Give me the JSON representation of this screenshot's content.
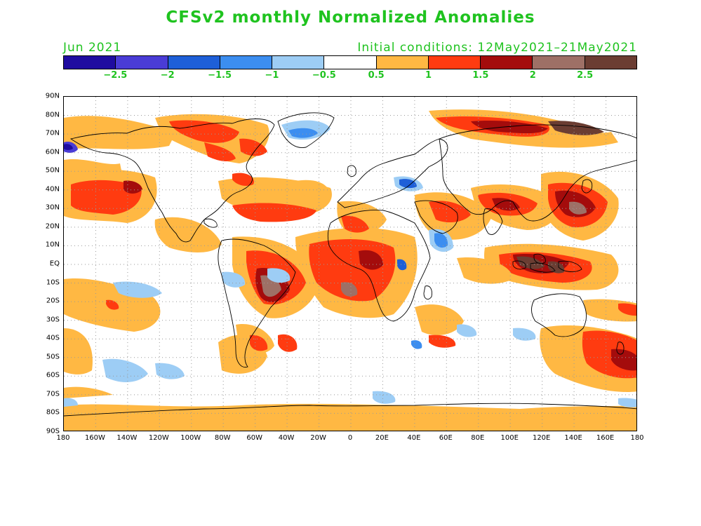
{
  "title": "CFSv2 monthly Normalized Anomalies",
  "forecast_month": "Jun 2021",
  "initial_conditions": "Initial conditions: 12May2021–21May2021",
  "colorbar": {
    "colors": [
      "#1f0ca0",
      "#4a3cd6",
      "#1e5fd8",
      "#3c8ef0",
      "#9dcdf5",
      "#ffffff",
      "#ffb843",
      "#ff3b10",
      "#a40c0c",
      "#9e7066",
      "#6b3d32"
    ],
    "labels": [
      "−2.5",
      "−2",
      "−1.5",
      "−1",
      "−0.5",
      "0.5",
      "1",
      "1.5",
      "2",
      "2.5"
    ]
  },
  "map": {
    "lat_labels": [
      "90N",
      "80N",
      "70N",
      "60N",
      "50N",
      "40N",
      "30N",
      "20N",
      "10N",
      "EQ",
      "10S",
      "20S",
      "30S",
      "40S",
      "50S",
      "60S",
      "70S",
      "80S",
      "90S"
    ],
    "lon_labels": [
      "180",
      "160W",
      "140W",
      "120W",
      "100W",
      "80W",
      "60W",
      "40W",
      "20W",
      "0",
      "20E",
      "40E",
      "60E",
      "80E",
      "100E",
      "120E",
      "140E",
      "160E",
      "180"
    ]
  }
}
